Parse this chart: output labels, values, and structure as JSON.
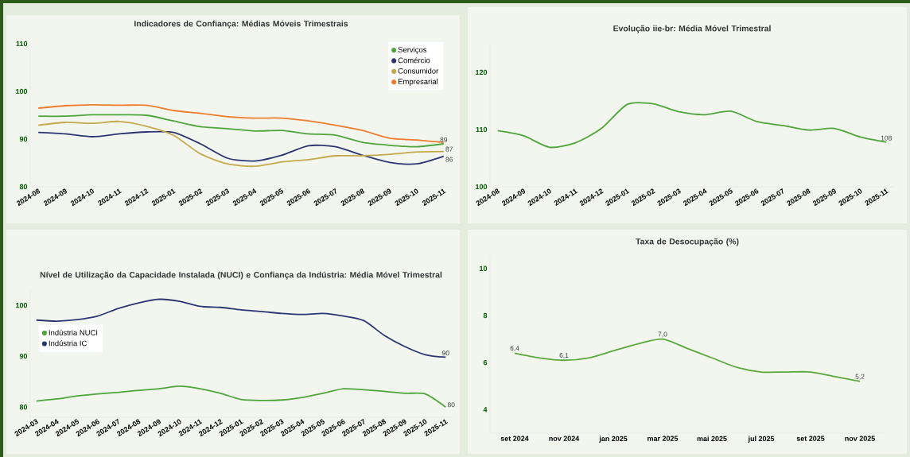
{
  "chart_data": [
    {
      "type": "line",
      "title": "Indicadores de Confiança: Médias Móveis Trimestrais",
      "categories": [
        "2024-08",
        "2024-09",
        "2024-10",
        "2024-11",
        "2024-12",
        "2025-01",
        "2025-02",
        "2025-03",
        "2025-04",
        "2025-05",
        "2025-06",
        "2025-07",
        "2025-08",
        "2025-09",
        "2025-10",
        "2025-11"
      ],
      "series": [
        {
          "name": "Serviços",
          "color": "#4ea53a",
          "values": [
            94.8,
            94.8,
            95.1,
            95.1,
            95.0,
            93.8,
            92.6,
            92.2,
            91.7,
            91.8,
            91.1,
            90.8,
            89.3,
            88.7,
            88.4,
            89.0
          ],
          "value_labels": [
            null,
            null,
            null,
            null,
            null,
            null,
            null,
            null,
            null,
            null,
            null,
            null,
            null,
            null,
            null,
            "89"
          ]
        },
        {
          "name": "Comércio",
          "color": "#2c3573",
          "values": [
            91.4,
            91.1,
            90.5,
            91.1,
            91.5,
            91.4,
            89.0,
            86.0,
            85.4,
            86.6,
            88.6,
            88.4,
            86.6,
            85.1,
            84.8,
            86.4
          ],
          "value_labels": [
            null,
            null,
            null,
            null,
            null,
            null,
            null,
            null,
            null,
            null,
            null,
            null,
            null,
            null,
            null,
            "86"
          ]
        },
        {
          "name": "Consumidor",
          "color": "#c5a84a",
          "values": [
            92.9,
            93.5,
            93.3,
            93.7,
            92.7,
            90.8,
            86.9,
            84.8,
            84.3,
            85.2,
            85.7,
            86.5,
            86.5,
            86.8,
            87.3,
            87.4
          ],
          "value_labels": [
            null,
            null,
            null,
            null,
            null,
            null,
            null,
            null,
            null,
            null,
            null,
            null,
            null,
            null,
            null,
            "87"
          ]
        },
        {
          "name": "Empresarial",
          "color": "#f07c2c",
          "values": [
            96.5,
            97.0,
            97.2,
            97.1,
            97.1,
            96.0,
            95.4,
            94.7,
            94.4,
            94.4,
            93.8,
            92.9,
            91.8,
            90.2,
            89.8,
            89.3
          ]
        }
      ],
      "ylim": [
        80,
        111
      ],
      "yticks": [
        80,
        90,
        100,
        110
      ],
      "legend": "top right"
    },
    {
      "type": "line",
      "title": "Evolução iie-br: Média Móvel Trimestral",
      "categories": [
        "2024-08",
        "2024-09",
        "2024-10",
        "2024-11",
        "2024-12",
        "2025-01",
        "2025-02",
        "2025-03",
        "2025-04",
        "2025-05",
        "2025-06",
        "2025-07",
        "2025-08",
        "2025-09",
        "2025-10",
        "2025-11"
      ],
      "series": [
        {
          "color": "#4ea53a",
          "values": [
            109.8,
            108.9,
            106.9,
            107.7,
            110.2,
            114.4,
            114.5,
            113.1,
            112.6,
            113.2,
            111.4,
            110.7,
            109.9,
            110.2,
            108.7,
            107.8
          ],
          "value_labels": [
            null,
            null,
            null,
            null,
            null,
            null,
            null,
            null,
            null,
            null,
            null,
            null,
            null,
            null,
            null,
            "108"
          ]
        }
      ],
      "ylim": [
        100,
        125
      ],
      "yticks": [
        100,
        110,
        120
      ]
    },
    {
      "type": "line",
      "title": "Nível de Utilização da Capacidade Instalada (NUCI) e Confiança da Indústria: Média Móvel Trimestral",
      "categories": [
        "2024-03",
        "2024-04",
        "2024-05",
        "2024-06",
        "2024-07",
        "2024-08",
        "2024-09",
        "2024-10",
        "2024-11",
        "2024-12",
        "2025-01",
        "2025-02",
        "2025-03",
        "2025-04",
        "2025-05",
        "2025-06",
        "2025-07",
        "2025-08",
        "2025-09",
        "2025-10",
        "2025-11"
      ],
      "series": [
        {
          "name": "Indústria NUCI",
          "color": "#4ea53a",
          "values": [
            81.2,
            81.6,
            82.2,
            82.6,
            82.9,
            83.3,
            83.6,
            84.1,
            83.6,
            82.7,
            81.5,
            81.3,
            81.4,
            81.9,
            82.7,
            83.6,
            83.4,
            83.1,
            82.7,
            82.6,
            80.0
          ],
          "value_labels": [
            null,
            null,
            null,
            null,
            null,
            null,
            null,
            null,
            null,
            null,
            null,
            null,
            null,
            null,
            null,
            null,
            null,
            null,
            null,
            null,
            "80"
          ]
        },
        {
          "name": "Indústria IC",
          "color": "#2c3573",
          "values": [
            97.1,
            96.9,
            97.2,
            97.9,
            99.4,
            100.5,
            101.2,
            100.8,
            99.8,
            99.6,
            99.1,
            98.8,
            98.4,
            98.2,
            98.4,
            97.9,
            97.0,
            94.1,
            91.9,
            90.3,
            89.8
          ],
          "value_labels": [
            null,
            null,
            null,
            null,
            null,
            null,
            null,
            null,
            null,
            null,
            null,
            null,
            null,
            null,
            null,
            null,
            null,
            null,
            null,
            null,
            "90"
          ]
        }
      ],
      "ylim": [
        78,
        103
      ],
      "yticks": [
        80,
        90,
        100
      ],
      "legend": "left"
    },
    {
      "type": "line",
      "title": "Taxa de Desocupação (%)",
      "x": [
        "2024-09",
        "2024-10",
        "2024-11",
        "2024-12",
        "2025-01",
        "2025-02",
        "2025-03",
        "2025-04",
        "2025-05",
        "2025-06",
        "2025-07",
        "2025-08",
        "2025-09",
        "2025-10",
        "2025-11"
      ],
      "series": [
        {
          "color": "#5aa83a",
          "values": [
            6.4,
            6.2,
            6.1,
            6.2,
            6.5,
            6.8,
            7.0,
            6.6,
            6.2,
            5.8,
            5.6,
            5.6,
            5.6,
            5.4,
            5.2
          ],
          "value_labels": [
            "6,4",
            null,
            "6,1",
            null,
            null,
            null,
            "7,0",
            null,
            null,
            null,
            null,
            null,
            null,
            null,
            "5,2"
          ]
        }
      ],
      "xlim": [
        "2024-08",
        "2025-12"
      ],
      "xticks": [
        {
          "value": "2024-09",
          "label": "set 2024"
        },
        {
          "value": "2024-11",
          "label": "nov 2024"
        },
        {
          "value": "2025-01",
          "label": "jan 2025"
        },
        {
          "value": "2025-03",
          "label": "mar 2025"
        },
        {
          "value": "2025-05",
          "label": "mai 2025"
        },
        {
          "value": "2025-07",
          "label": "jul 2025"
        },
        {
          "value": "2025-09",
          "label": "set 2025"
        },
        {
          "value": "2025-11",
          "label": "nov 2025"
        }
      ],
      "ylim": [
        3,
        10.5
      ],
      "yticks": [
        4,
        6,
        8,
        10
      ]
    }
  ]
}
